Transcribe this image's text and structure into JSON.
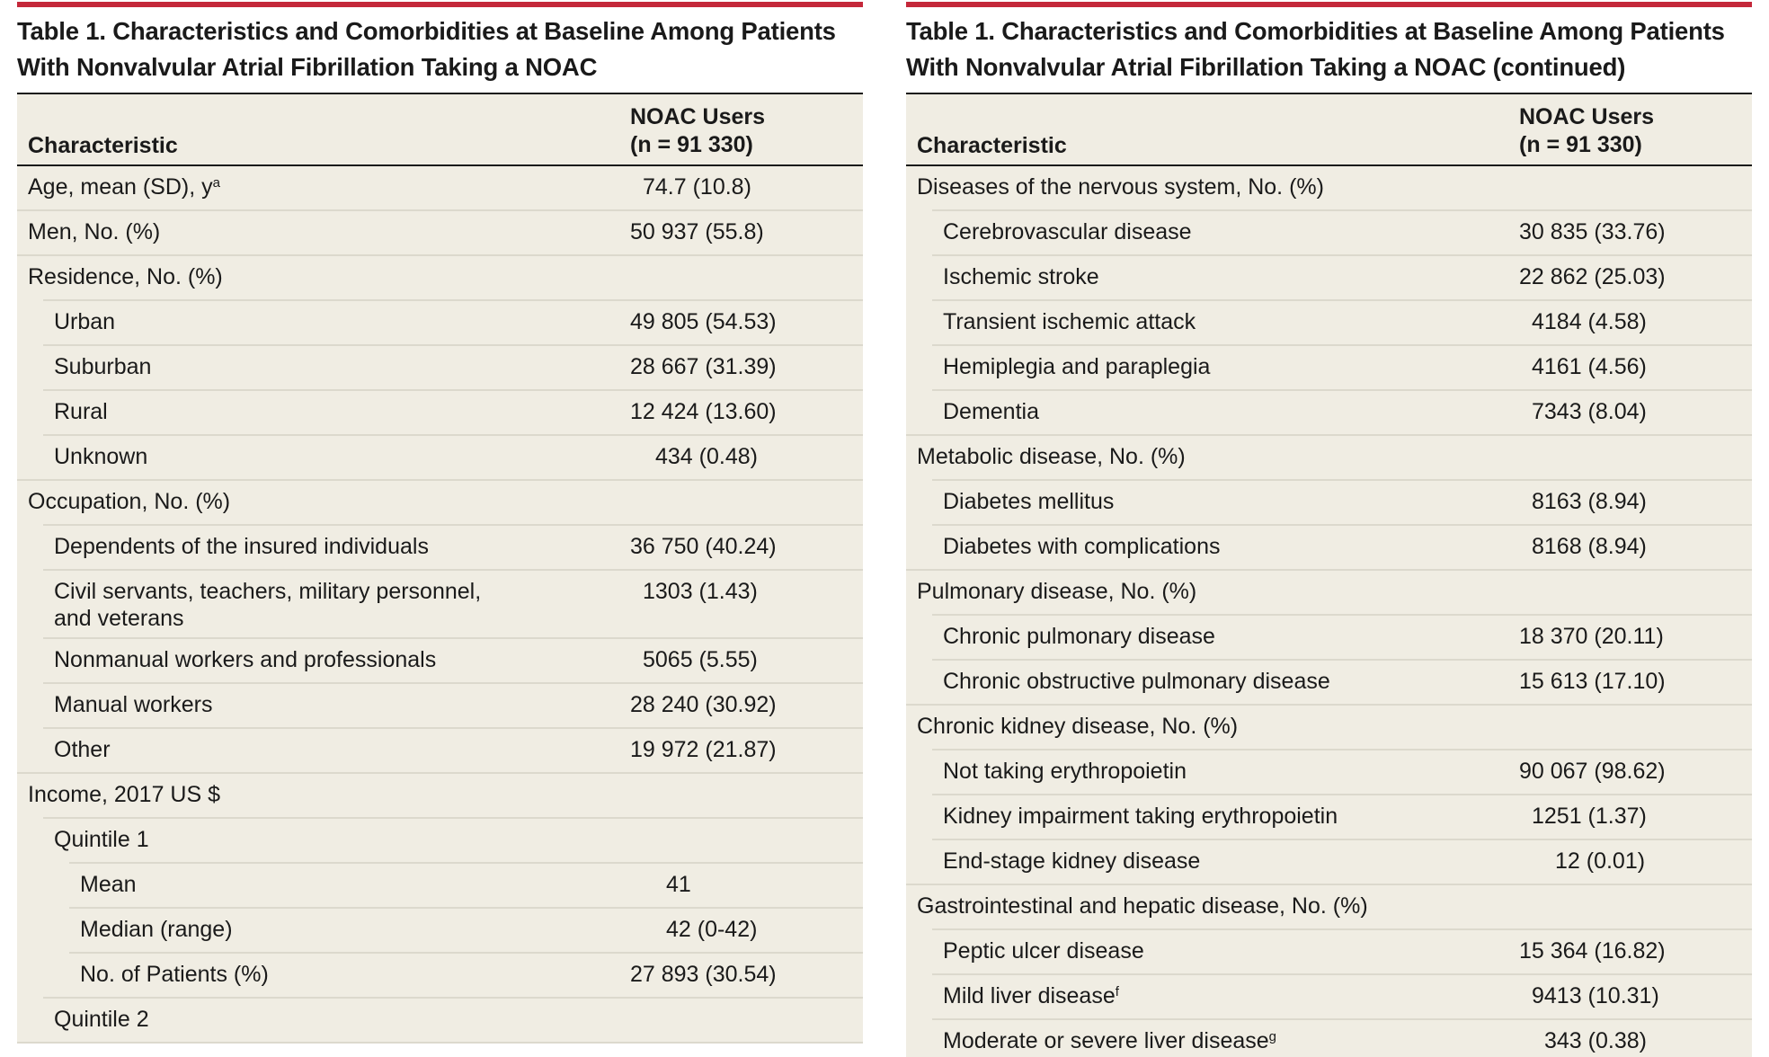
{
  "left": {
    "title_line1": "Table 1. Characteristics and Comorbidities at Baseline Among Patients",
    "title_line2": "With Nonvalvular Atrial Fibrillation Taking a NOAC",
    "header": {
      "characteristic": "Characteristic",
      "value_line1": "NOAC Users",
      "value_line2": "(n = 91 330)"
    },
    "rows": [
      {
        "label": "Age, mean (SD), y",
        "sup": "a",
        "value": "74.7 (10.8)",
        "level": 0
      },
      {
        "label": "Men, No. (%)",
        "value": "50 937 (55.8)",
        "level": 0
      },
      {
        "label": "Residence, No. (%)",
        "value": "",
        "level": 0
      },
      {
        "label": "Urban",
        "value": "49 805 (54.53)",
        "level": 1
      },
      {
        "label": "Suburban",
        "value": "28 667 (31.39)",
        "level": 1
      },
      {
        "label": "Rural",
        "value": "12 424 (13.60)",
        "level": 1
      },
      {
        "label": "Unknown",
        "value": "434 (0.48)",
        "level": 1
      },
      {
        "label": "Occupation, No. (%)",
        "value": "",
        "level": 0
      },
      {
        "label": "Dependents of the insured individuals",
        "value": "36 750 (40.24)",
        "level": 1
      },
      {
        "label": "Civil servants, teachers, military personnel,",
        "label2": "and veterans",
        "value": "1303 (1.43)",
        "level": 1
      },
      {
        "label": "Nonmanual workers and professionals",
        "value": "5065 (5.55)",
        "level": 1
      },
      {
        "label": "Manual workers",
        "value": "28 240 (30.92)",
        "level": 1
      },
      {
        "label": "Other",
        "value": "19 972 (21.87)",
        "level": 1
      },
      {
        "label": "Income, 2017 US $",
        "value": "",
        "level": 0
      },
      {
        "label": "Quintile 1",
        "value": "",
        "level": 1
      },
      {
        "label": "Mean",
        "value": "41",
        "level": 2
      },
      {
        "label": "Median (range)",
        "value": "42 (0-42)",
        "level": 2
      },
      {
        "label": "No. of Patients (%)",
        "value": "27 893 (30.54)",
        "level": 2
      },
      {
        "label": "Quintile 2",
        "value": "",
        "level": 1
      }
    ]
  },
  "right": {
    "title_line1": "Table 1. Characteristics and Comorbidities at Baseline Among Patients",
    "title_line2": "With Nonvalvular Atrial Fibrillation Taking a NOAC (continued)",
    "header": {
      "characteristic": "Characteristic",
      "value_line1": "NOAC Users",
      "value_line2": "(n = 91 330)"
    },
    "rows": [
      {
        "label": "Diseases of the nervous system, No. (%)",
        "value": "",
        "level": 0
      },
      {
        "label": "Cerebrovascular disease",
        "value": "30 835 (33.76)",
        "level": 1
      },
      {
        "label": "Ischemic stroke",
        "value": "22 862 (25.03)",
        "level": 1
      },
      {
        "label": "Transient ischemic attack",
        "value": "4184 (4.58)",
        "level": 1
      },
      {
        "label": "Hemiplegia and paraplegia",
        "value": "4161 (4.56)",
        "level": 1
      },
      {
        "label": "Dementia",
        "value": "7343 (8.04)",
        "level": 1
      },
      {
        "label": "Metabolic disease, No. (%)",
        "value": "",
        "level": 0
      },
      {
        "label": "Diabetes mellitus",
        "value": "8163 (8.94)",
        "level": 1
      },
      {
        "label": "Diabetes with complications",
        "value": "8168 (8.94)",
        "level": 1
      },
      {
        "label": "Pulmonary disease, No. (%)",
        "value": "",
        "level": 0
      },
      {
        "label": "Chronic pulmonary disease",
        "value": "18 370 (20.11)",
        "level": 1
      },
      {
        "label": "Chronic obstructive pulmonary disease",
        "value": "15 613 (17.10)",
        "level": 1
      },
      {
        "label": "Chronic kidney disease, No. (%)",
        "value": "",
        "level": 0
      },
      {
        "label": "Not taking erythropoietin",
        "value": "90 067 (98.62)",
        "level": 1
      },
      {
        "label": "Kidney impairment taking erythropoietin",
        "value": "1251 (1.37)",
        "level": 1
      },
      {
        "label": "End-stage kidney disease",
        "value": "12 (0.01)",
        "level": 1
      },
      {
        "label": "Gastrointestinal and hepatic disease, No. (%)",
        "value": "",
        "level": 0
      },
      {
        "label": "Peptic ulcer disease",
        "value": "15 364 (16.82)",
        "level": 1
      },
      {
        "label": "Mild liver disease",
        "sup": "f",
        "value": "9413 (10.31)",
        "level": 1
      },
      {
        "label": "Moderate or severe liver disease",
        "sup": "g",
        "value": "343 (0.38)",
        "level": 1
      }
    ]
  }
}
